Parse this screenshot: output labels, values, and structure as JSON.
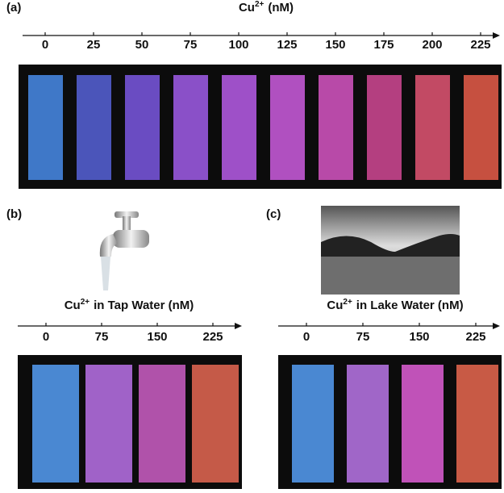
{
  "panels": [
    {
      "label": "(a)",
      "title": {
        "symbol": "Cu",
        "charge": "2+",
        "rest": "(nM)"
      },
      "ticks": [
        "0",
        "25",
        "50",
        "75",
        "100",
        "125",
        "150",
        "175",
        "200",
        "225"
      ],
      "strip_colors": [
        "#3f78c8",
        "#4b55ba",
        "#6a4cc2",
        "#8a50c8",
        "#9e50c8",
        "#b050c0",
        "#b84aa8",
        "#b43f80",
        "#c24a64",
        "#c65040"
      ]
    },
    {
      "label": "(b)",
      "title": {
        "symbol": "Cu",
        "charge": "2+",
        "rest": "in Tap Water (nM)"
      },
      "ticks": [
        "0",
        "75",
        "150",
        "225"
      ],
      "strip_colors": [
        "#4a88d2",
        "#a062c8",
        "#b052aa",
        "#c55a48"
      ]
    },
    {
      "label": "(c)",
      "title": {
        "symbol": "Cu",
        "charge": "2+",
        "rest": "in Lake Water (nM)"
      },
      "ticks": [
        "0",
        "75",
        "150",
        "225"
      ],
      "strip_colors": [
        "#4a88d2",
        "#a066c8",
        "#c052b8",
        "#c85a45"
      ]
    }
  ]
}
